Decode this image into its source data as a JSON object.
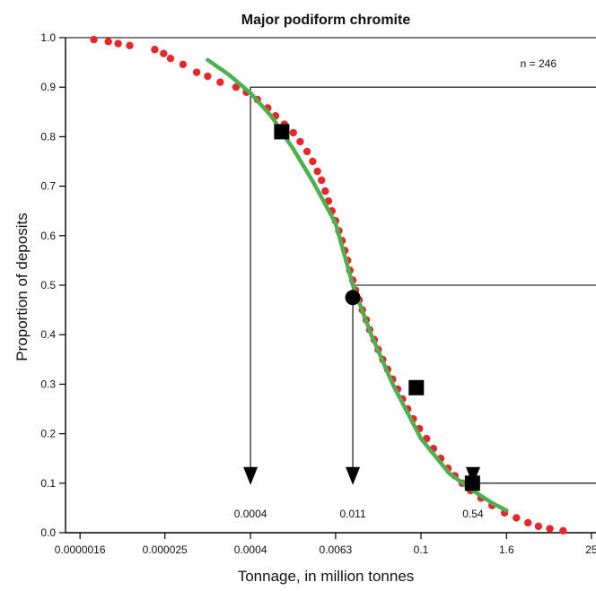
{
  "chart_data": {
    "type": "scatter",
    "title": "Major podiform chromite",
    "xlabel": "Tonnage, in million tonnes",
    "ylabel": "Proportion of deposits",
    "x_scale": "log",
    "xlim": [
      1e-06,
      29
    ],
    "ylim": [
      0,
      1.0
    ],
    "x_ticks": [
      {
        "value": 1.6e-06,
        "label": "0.0000016"
      },
      {
        "value": 2.5e-05,
        "label": "0.000025"
      },
      {
        "value": 0.0004,
        "label": "0.0004"
      },
      {
        "value": 0.0063,
        "label": "0.0063"
      },
      {
        "value": 0.1,
        "label": "0.1"
      },
      {
        "value": 1.6,
        "label": "1.6"
      },
      {
        "value": 25,
        "label": "25"
      }
    ],
    "y_ticks": [
      {
        "value": 0.0,
        "label": "0.0"
      },
      {
        "value": 0.1,
        "label": "0.1"
      },
      {
        "value": 0.2,
        "label": "0.2"
      },
      {
        "value": 0.3,
        "label": "0.3"
      },
      {
        "value": 0.4,
        "label": "0.4"
      },
      {
        "value": 0.5,
        "label": "0.5"
      },
      {
        "value": 0.6,
        "label": "0.6"
      },
      {
        "value": 0.7,
        "label": "0.7"
      },
      {
        "value": 0.8,
        "label": "0.8"
      },
      {
        "value": 0.9,
        "label": "0.9"
      },
      {
        "value": 1.0,
        "label": "1.0"
      }
    ],
    "n_label": "n = 246",
    "observed": {
      "color": "#e8262b",
      "points": [
        [
          2.5e-06,
          0.996
        ],
        [
          4e-06,
          0.992
        ],
        [
          5.5e-06,
          0.988
        ],
        [
          8e-06,
          0.984
        ],
        [
          1.8e-05,
          0.976
        ],
        [
          2.4e-05,
          0.968
        ],
        [
          3e-05,
          0.958
        ],
        [
          4.5e-05,
          0.946
        ],
        [
          7e-05,
          0.93
        ],
        [
          0.0001,
          0.922
        ],
        [
          0.00015,
          0.91
        ],
        [
          0.00025,
          0.9
        ],
        [
          0.00035,
          0.89
        ],
        [
          0.0005,
          0.875
        ],
        [
          0.0007,
          0.858
        ],
        [
          0.0009,
          0.842
        ],
        [
          0.0012,
          0.825
        ],
        [
          0.0016,
          0.808
        ],
        [
          0.002,
          0.79
        ],
        [
          0.0025,
          0.77
        ],
        [
          0.003,
          0.75
        ],
        [
          0.0035,
          0.73
        ],
        [
          0.004,
          0.712
        ],
        [
          0.0045,
          0.69
        ],
        [
          0.005,
          0.67
        ],
        [
          0.0056,
          0.65
        ],
        [
          0.0063,
          0.63
        ],
        [
          0.007,
          0.61
        ],
        [
          0.0078,
          0.59
        ],
        [
          0.0085,
          0.57
        ],
        [
          0.0093,
          0.55
        ],
        [
          0.01,
          0.53
        ],
        [
          0.011,
          0.51
        ],
        [
          0.012,
          0.49
        ],
        [
          0.0135,
          0.47
        ],
        [
          0.015,
          0.45
        ],
        [
          0.017,
          0.43
        ],
        [
          0.019,
          0.41
        ],
        [
          0.022,
          0.39
        ],
        [
          0.025,
          0.37
        ],
        [
          0.029,
          0.35
        ],
        [
          0.034,
          0.33
        ],
        [
          0.04,
          0.31
        ],
        [
          0.047,
          0.29
        ],
        [
          0.055,
          0.27
        ],
        [
          0.065,
          0.25
        ],
        [
          0.078,
          0.23
        ],
        [
          0.095,
          0.21
        ],
        [
          0.12,
          0.19
        ],
        [
          0.15,
          0.17
        ],
        [
          0.19,
          0.15
        ],
        [
          0.24,
          0.13
        ],
        [
          0.3,
          0.115
        ],
        [
          0.38,
          0.1
        ],
        [
          0.5,
          0.085
        ],
        [
          0.7,
          0.07
        ],
        [
          1.0,
          0.055
        ],
        [
          1.5,
          0.04
        ],
        [
          2.2,
          0.03
        ],
        [
          3.2,
          0.02
        ],
        [
          4.5,
          0.013
        ],
        [
          6.5,
          0.008
        ],
        [
          10,
          0.004
        ]
      ]
    },
    "fitted": {
      "color": "#4caf50",
      "points": [
        [
          0.0001,
          0.955
        ],
        [
          0.0002,
          0.925
        ],
        [
          0.0004,
          0.888
        ],
        [
          0.0008,
          0.84
        ],
        [
          0.0016,
          0.775
        ],
        [
          0.003,
          0.71
        ],
        [
          0.0063,
          0.625
        ],
        [
          0.011,
          0.5
        ],
        [
          0.02,
          0.4
        ],
        [
          0.04,
          0.3
        ],
        [
          0.1,
          0.19
        ],
        [
          0.25,
          0.12
        ],
        [
          0.54,
          0.085
        ],
        [
          1.0,
          0.06
        ],
        [
          1.6,
          0.045
        ]
      ]
    },
    "markers": [
      {
        "shape": "square",
        "x": 0.0011,
        "y": 0.81
      },
      {
        "shape": "circle",
        "x": 0.011,
        "y": 0.475
      },
      {
        "shape": "square",
        "x": 0.086,
        "y": 0.293
      },
      {
        "shape": "square",
        "x": 0.53,
        "y": 0.1
      }
    ],
    "percentile_lines": [
      {
        "y": 0.9,
        "x": 0.0004,
        "label": "0.0004"
      },
      {
        "y": 0.5,
        "x": 0.011,
        "label": "0.011"
      },
      {
        "y": 0.1,
        "x": 0.54,
        "label": "0.54"
      }
    ]
  }
}
